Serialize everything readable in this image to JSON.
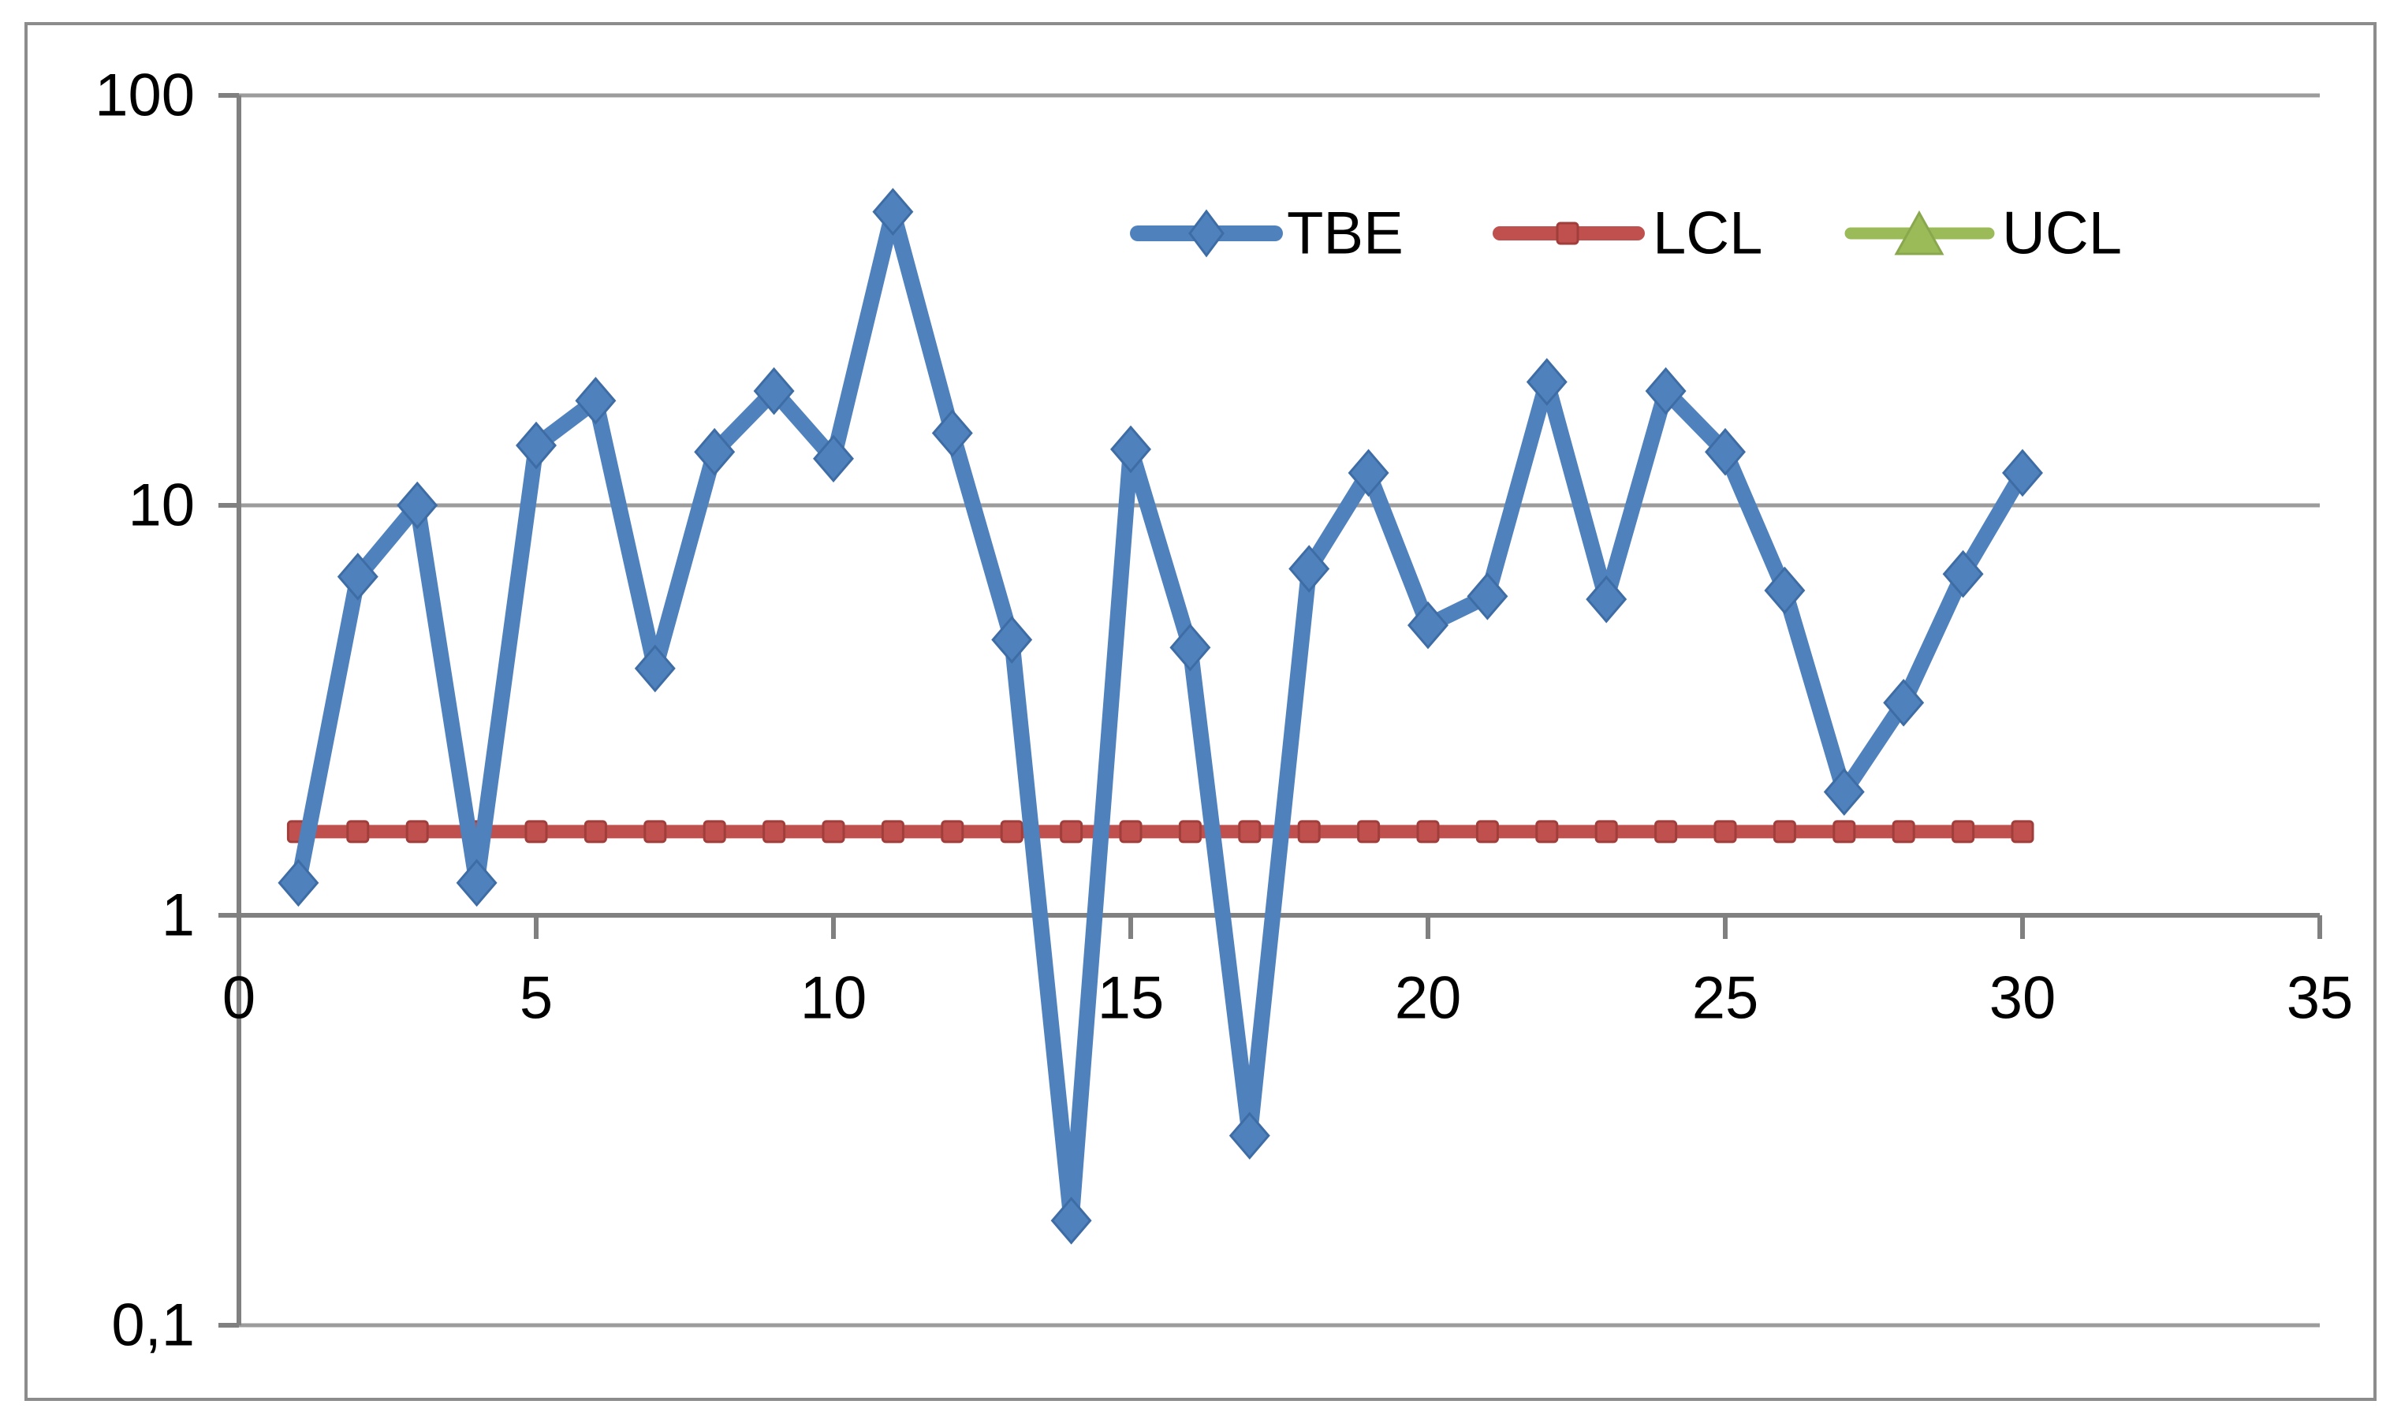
{
  "chart_data": {
    "type": "line",
    "title": "",
    "log_scale_y": true,
    "x": [
      1,
      2,
      3,
      4,
      5,
      6,
      7,
      8,
      9,
      10,
      11,
      12,
      13,
      14,
      15,
      16,
      17,
      18,
      19,
      20,
      21,
      22,
      23,
      24,
      25,
      26,
      27,
      28,
      29,
      30
    ],
    "series": [
      {
        "name": "TBE",
        "color": "#4F81BD",
        "marker": "diamond",
        "values": [
          1.2,
          6.7,
          10,
          1.2,
          14,
          18,
          4,
          13.5,
          19,
          13,
          52,
          15,
          4.7,
          0.18,
          13.7,
          4.5,
          0.29,
          7,
          12,
          5.1,
          6,
          20,
          5.9,
          19,
          13.5,
          6.2,
          2,
          3.3,
          6.8,
          12
        ]
      },
      {
        "name": "LCL",
        "color": "#C0504D",
        "marker": "square",
        "values": [
          1.6,
          1.6,
          1.6,
          1.6,
          1.6,
          1.6,
          1.6,
          1.6,
          1.6,
          1.6,
          1.6,
          1.6,
          1.6,
          1.6,
          1.6,
          1.6,
          1.6,
          1.6,
          1.6,
          1.6,
          1.6,
          1.6,
          1.6,
          1.6,
          1.6,
          1.6,
          1.6,
          1.6,
          1.6,
          1.6
        ]
      },
      {
        "name": "UCL",
        "color": "#9BBB59",
        "marker": "triangle",
        "values": null,
        "visible_in_plot": false
      }
    ],
    "y_axis": {
      "min": 0.1,
      "max": 100,
      "tick_values": [
        100,
        10,
        1,
        0.1
      ],
      "tick_labels": [
        "100",
        "10",
        "1",
        "0,1"
      ]
    },
    "x_axis": {
      "min": 0,
      "max": 35,
      "tick_values": [
        0,
        5,
        10,
        15,
        20,
        25,
        30,
        35
      ],
      "tick_labels": [
        "0",
        "5",
        "10",
        "15",
        "20",
        "25",
        "30",
        "35"
      ]
    },
    "legend": {
      "position": "top-right-inside",
      "entries": [
        "TBE",
        "LCL",
        "UCL"
      ]
    },
    "grid": "horizontal-major-only",
    "colors": {
      "axis": "#808080",
      "gridline": "#9C9C9C",
      "chart_border": "#8C8C8C",
      "tbe_marker_edge": "#3E6DA5",
      "lcl_marker_edge": "#A03E3B",
      "ucl_marker_edge": "#89A84E",
      "text": "#000000",
      "background": "#FFFFFF"
    }
  }
}
